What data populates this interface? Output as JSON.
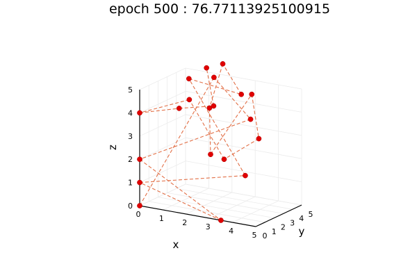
{
  "chart_data": {
    "type": "scatter3d-line",
    "title": "epoch 500 : 76.77113925100915",
    "xlabel": "x",
    "ylabel": "y",
    "zlabel": "z",
    "xlim": [
      0,
      5
    ],
    "ylim": [
      0,
      5
    ],
    "zlim": [
      0,
      5
    ],
    "x_ticks": [
      "0",
      "1",
      "2",
      "3",
      "4",
      "5"
    ],
    "y_ticks": [
      "0",
      "1",
      "2",
      "3",
      "4",
      "5"
    ],
    "z_ticks": [
      "0",
      "1",
      "2",
      "3",
      "4",
      "5"
    ],
    "grid": true,
    "legend": "none",
    "series": [
      {
        "marker_color": "#e00000",
        "line_color": "#e26f46",
        "line_style": "dashed",
        "points": [
          {
            "x": 0,
            "y": 0,
            "z": 0
          },
          {
            "x": 1.5,
            "y": 4.3,
            "z": 5
          },
          {
            "x": 2.8,
            "y": 5,
            "z": 3.3
          },
          {
            "x": 0,
            "y": 0,
            "z": 2
          },
          {
            "x": 3.5,
            "y": 0,
            "z": 0
          },
          {
            "x": 0,
            "y": 0,
            "z": 1
          },
          {
            "x": 3.6,
            "y": 2.4,
            "z": 1.5
          },
          {
            "x": 0.5,
            "y": 4.1,
            "z": 4.8
          },
          {
            "x": 2.4,
            "y": 5,
            "z": 4.3
          },
          {
            "x": 1.8,
            "y": 4.5,
            "z": 5.6
          },
          {
            "x": 1.7,
            "y": 3.3,
            "z": 3.9
          },
          {
            "x": 2.5,
            "y": 1.4,
            "z": 2.4
          },
          {
            "x": 3.8,
            "y": 2.6,
            "z": 5
          },
          {
            "x": 4.5,
            "y": 1.6,
            "z": 3.4
          },
          {
            "x": 3.4,
            "y": 0.6,
            "z": 2.5
          },
          {
            "x": 1.9,
            "y": 0.6,
            "z": 4.8
          },
          {
            "x": 0,
            "y": 0,
            "z": 4
          },
          {
            "x": 1.7,
            "y": 0,
            "z": 4.5
          },
          {
            "x": 2,
            "y": 3,
            "z": 4.1
          },
          {
            "x": 1.1,
            "y": 4.5,
            "z": 5.3
          }
        ]
      }
    ]
  }
}
